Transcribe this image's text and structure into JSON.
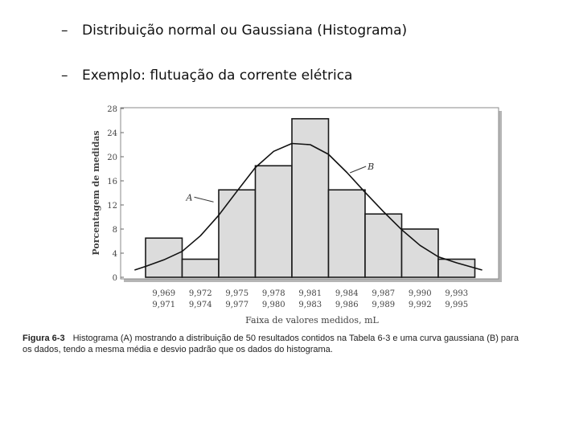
{
  "bullets": [
    {
      "dash": "–",
      "text": "Distribuição normal ou Gaussiana (Histograma)"
    },
    {
      "dash": "–",
      "text": "Exemplo: flutuação da corrente elétrica"
    }
  ],
  "chart_data": {
    "type": "bar",
    "title": "",
    "xlabel": "Faixa de valores medidos, mL",
    "ylabel": "Porcentagem de medidas",
    "ylim": [
      0,
      28
    ],
    "yticks": [
      "0",
      "4",
      "8",
      "12",
      "16",
      "20",
      "24",
      "28"
    ],
    "grid": false,
    "categories": [
      [
        "9,969",
        "9,971"
      ],
      [
        "9,972",
        "9,974"
      ],
      [
        "9,975",
        "9,977"
      ],
      [
        "9,978",
        "9,980"
      ],
      [
        "9,981",
        "9,983"
      ],
      [
        "9,984",
        "9,986"
      ],
      [
        "9,987",
        "9,989"
      ],
      [
        "9,990",
        "9,992"
      ],
      [
        "9,993",
        "9,995"
      ]
    ],
    "values": [
      6.5,
      3,
      14.5,
      18.5,
      26.3,
      14.5,
      10.5,
      8,
      3
    ],
    "curve": {
      "x": [
        -0.3,
        0,
        0.5,
        1,
        1.5,
        2,
        2.5,
        3,
        3.5,
        4,
        4.5,
        5,
        5.5,
        6,
        6.5,
        7,
        7.5,
        8,
        8.5,
        9.2
      ],
      "y": [
        1.2,
        1.8,
        2.9,
        4.3,
        6.9,
        10.3,
        14.3,
        18.2,
        20.9,
        22.2,
        22.0,
        20.4,
        17.4,
        14.1,
        10.9,
        7.9,
        5.3,
        3.4,
        2.4,
        1.2
      ]
    },
    "annotations": [
      {
        "label": "A",
        "x": 1.55,
        "y": 13.3
      },
      {
        "label": "B",
        "x": 5.85,
        "y": 18.4
      }
    ]
  },
  "caption": {
    "figure": "Figura 6-3",
    "line1": "Histograma (A) mostrando a distribuição de 50 resultados contidos na Tabela 6-3 e uma curva gaussiana (B) para",
    "line2": "os dados, tendo a mesma média e desvio padrão que os dados do histograma."
  },
  "colors": {
    "bar_fill": "#dcdcdc",
    "bar_stroke": "#1a1a1a",
    "curve": "#111111",
    "axis_text": "#444444",
    "frame_shadow": "#9a9a9a"
  }
}
